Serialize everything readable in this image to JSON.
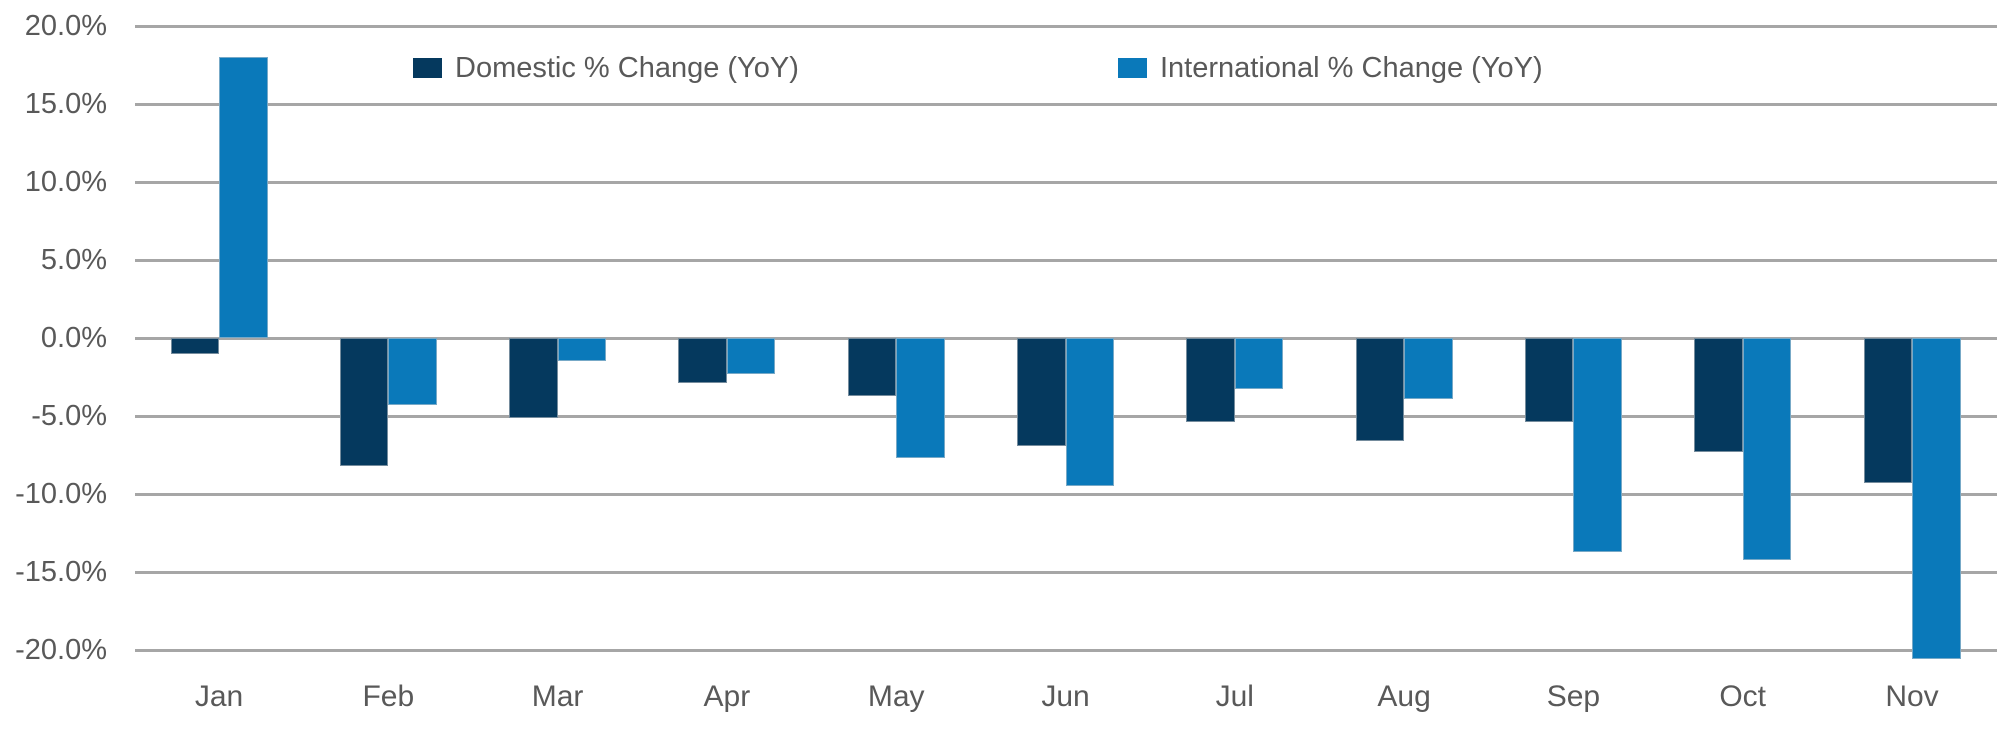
{
  "chart_data": {
    "type": "bar",
    "title": "",
    "categories": [
      "Jan",
      "Feb",
      "Mar",
      "Apr",
      "May",
      "Jun",
      "Jul",
      "Aug",
      "Sep",
      "Oct",
      "Nov"
    ],
    "series": [
      {
        "name": "Domestic % Change (YoY)",
        "color": "#05395e",
        "values": [
          -1.0,
          -8.2,
          -5.1,
          -2.9,
          -3.7,
          -6.9,
          -5.4,
          -6.6,
          -5.4,
          -7.3,
          -9.3
        ]
      },
      {
        "name": "International % Change (YoY)",
        "color": "#0a79ba",
        "values": [
          18.0,
          -4.3,
          -1.5,
          -2.3,
          -7.7,
          -9.5,
          -3.3,
          -3.9,
          -13.7,
          -14.2,
          -20.6
        ]
      }
    ],
    "xlabel": "",
    "ylabel": "",
    "ylim": [
      -20,
      20
    ],
    "yticks": [
      20,
      15,
      10,
      5,
      0,
      -5,
      -10,
      -15,
      -20
    ],
    "ytick_labels": [
      "20.0%",
      "15.0%",
      "10.0%",
      "5.0%",
      "0.0%",
      "-5.0%",
      "-10.0%",
      "-15.0%",
      "-20.0%"
    ],
    "grid": "horizontal",
    "legend_position": "top",
    "colors": {
      "axis_text": "#595959",
      "gridline": "#a6a6a6",
      "background": "#ffffff"
    }
  }
}
